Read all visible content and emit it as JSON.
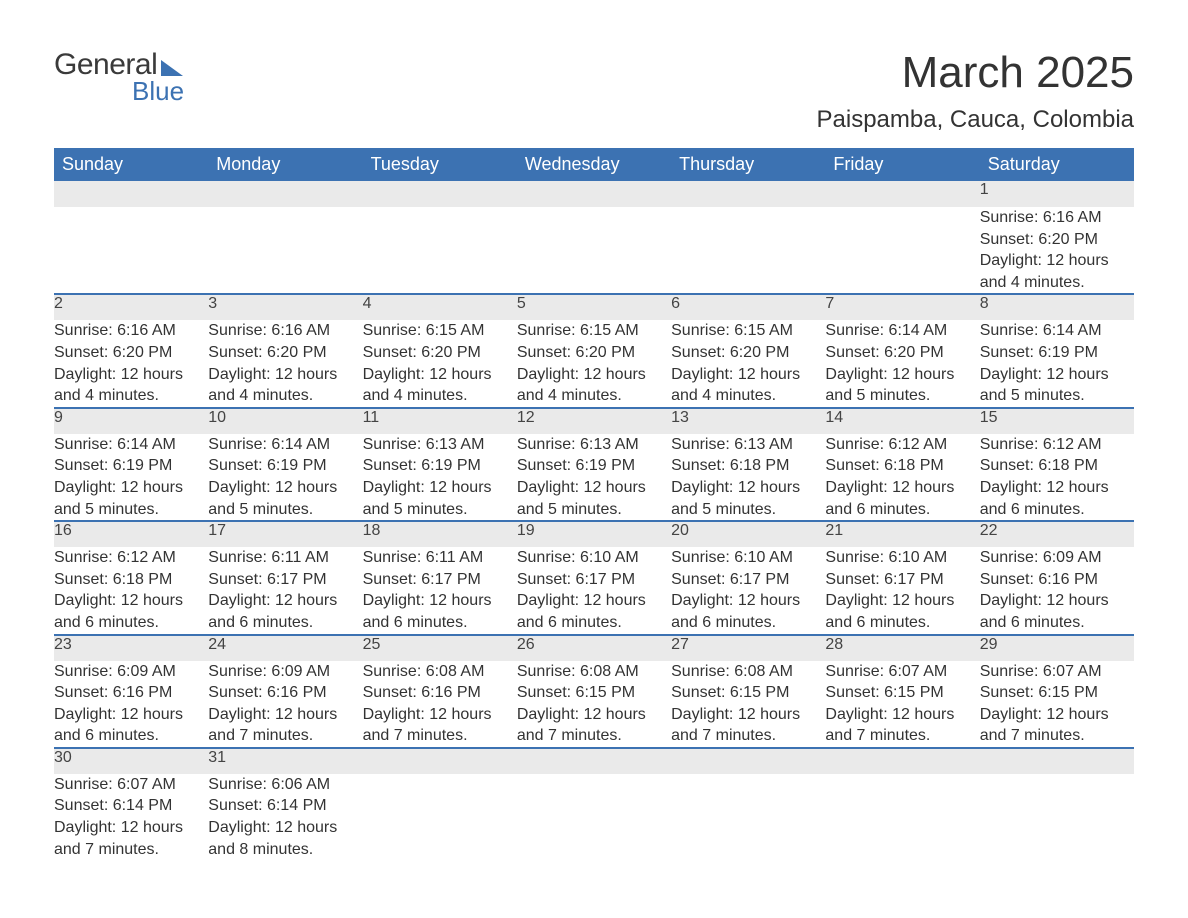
{
  "brand": {
    "text1": "General",
    "text2": "Blue",
    "accent_color": "#3c72b2"
  },
  "header": {
    "month": "March 2025",
    "location": "Paispamba, Cauca, Colombia"
  },
  "theme": {
    "header_bg": "#3c72b2",
    "header_fg": "#ffffff",
    "daynum_bg": "#eaeaea",
    "border_color": "#3c72b2",
    "text_color": "#333333"
  },
  "day_headers": [
    "Sunday",
    "Monday",
    "Tuesday",
    "Wednesday",
    "Thursday",
    "Friday",
    "Saturday"
  ],
  "weeks": [
    {
      "nums": [
        "",
        "",
        "",
        "",
        "",
        "",
        "1"
      ],
      "cells": [
        [],
        [],
        [],
        [],
        [],
        [],
        [
          "Sunrise: 6:16 AM",
          "Sunset: 6:20 PM",
          "Daylight: 12 hours",
          "and 4 minutes."
        ]
      ]
    },
    {
      "nums": [
        "2",
        "3",
        "4",
        "5",
        "6",
        "7",
        "8"
      ],
      "cells": [
        [
          "Sunrise: 6:16 AM",
          "Sunset: 6:20 PM",
          "Daylight: 12 hours",
          "and 4 minutes."
        ],
        [
          "Sunrise: 6:16 AM",
          "Sunset: 6:20 PM",
          "Daylight: 12 hours",
          "and 4 minutes."
        ],
        [
          "Sunrise: 6:15 AM",
          "Sunset: 6:20 PM",
          "Daylight: 12 hours",
          "and 4 minutes."
        ],
        [
          "Sunrise: 6:15 AM",
          "Sunset: 6:20 PM",
          "Daylight: 12 hours",
          "and 4 minutes."
        ],
        [
          "Sunrise: 6:15 AM",
          "Sunset: 6:20 PM",
          "Daylight: 12 hours",
          "and 4 minutes."
        ],
        [
          "Sunrise: 6:14 AM",
          "Sunset: 6:20 PM",
          "Daylight: 12 hours",
          "and 5 minutes."
        ],
        [
          "Sunrise: 6:14 AM",
          "Sunset: 6:19 PM",
          "Daylight: 12 hours",
          "and 5 minutes."
        ]
      ]
    },
    {
      "nums": [
        "9",
        "10",
        "11",
        "12",
        "13",
        "14",
        "15"
      ],
      "cells": [
        [
          "Sunrise: 6:14 AM",
          "Sunset: 6:19 PM",
          "Daylight: 12 hours",
          "and 5 minutes."
        ],
        [
          "Sunrise: 6:14 AM",
          "Sunset: 6:19 PM",
          "Daylight: 12 hours",
          "and 5 minutes."
        ],
        [
          "Sunrise: 6:13 AM",
          "Sunset: 6:19 PM",
          "Daylight: 12 hours",
          "and 5 minutes."
        ],
        [
          "Sunrise: 6:13 AM",
          "Sunset: 6:19 PM",
          "Daylight: 12 hours",
          "and 5 minutes."
        ],
        [
          "Sunrise: 6:13 AM",
          "Sunset: 6:18 PM",
          "Daylight: 12 hours",
          "and 5 minutes."
        ],
        [
          "Sunrise: 6:12 AM",
          "Sunset: 6:18 PM",
          "Daylight: 12 hours",
          "and 6 minutes."
        ],
        [
          "Sunrise: 6:12 AM",
          "Sunset: 6:18 PM",
          "Daylight: 12 hours",
          "and 6 minutes."
        ]
      ]
    },
    {
      "nums": [
        "16",
        "17",
        "18",
        "19",
        "20",
        "21",
        "22"
      ],
      "cells": [
        [
          "Sunrise: 6:12 AM",
          "Sunset: 6:18 PM",
          "Daylight: 12 hours",
          "and 6 minutes."
        ],
        [
          "Sunrise: 6:11 AM",
          "Sunset: 6:17 PM",
          "Daylight: 12 hours",
          "and 6 minutes."
        ],
        [
          "Sunrise: 6:11 AM",
          "Sunset: 6:17 PM",
          "Daylight: 12 hours",
          "and 6 minutes."
        ],
        [
          "Sunrise: 6:10 AM",
          "Sunset: 6:17 PM",
          "Daylight: 12 hours",
          "and 6 minutes."
        ],
        [
          "Sunrise: 6:10 AM",
          "Sunset: 6:17 PM",
          "Daylight: 12 hours",
          "and 6 minutes."
        ],
        [
          "Sunrise: 6:10 AM",
          "Sunset: 6:17 PM",
          "Daylight: 12 hours",
          "and 6 minutes."
        ],
        [
          "Sunrise: 6:09 AM",
          "Sunset: 6:16 PM",
          "Daylight: 12 hours",
          "and 6 minutes."
        ]
      ]
    },
    {
      "nums": [
        "23",
        "24",
        "25",
        "26",
        "27",
        "28",
        "29"
      ],
      "cells": [
        [
          "Sunrise: 6:09 AM",
          "Sunset: 6:16 PM",
          "Daylight: 12 hours",
          "and 6 minutes."
        ],
        [
          "Sunrise: 6:09 AM",
          "Sunset: 6:16 PM",
          "Daylight: 12 hours",
          "and 7 minutes."
        ],
        [
          "Sunrise: 6:08 AM",
          "Sunset: 6:16 PM",
          "Daylight: 12 hours",
          "and 7 minutes."
        ],
        [
          "Sunrise: 6:08 AM",
          "Sunset: 6:15 PM",
          "Daylight: 12 hours",
          "and 7 minutes."
        ],
        [
          "Sunrise: 6:08 AM",
          "Sunset: 6:15 PM",
          "Daylight: 12 hours",
          "and 7 minutes."
        ],
        [
          "Sunrise: 6:07 AM",
          "Sunset: 6:15 PM",
          "Daylight: 12 hours",
          "and 7 minutes."
        ],
        [
          "Sunrise: 6:07 AM",
          "Sunset: 6:15 PM",
          "Daylight: 12 hours",
          "and 7 minutes."
        ]
      ]
    },
    {
      "nums": [
        "30",
        "31",
        "",
        "",
        "",
        "",
        ""
      ],
      "cells": [
        [
          "Sunrise: 6:07 AM",
          "Sunset: 6:14 PM",
          "Daylight: 12 hours",
          "and 7 minutes."
        ],
        [
          "Sunrise: 6:06 AM",
          "Sunset: 6:14 PM",
          "Daylight: 12 hours",
          "and 8 minutes."
        ],
        [],
        [],
        [],
        [],
        []
      ]
    }
  ]
}
